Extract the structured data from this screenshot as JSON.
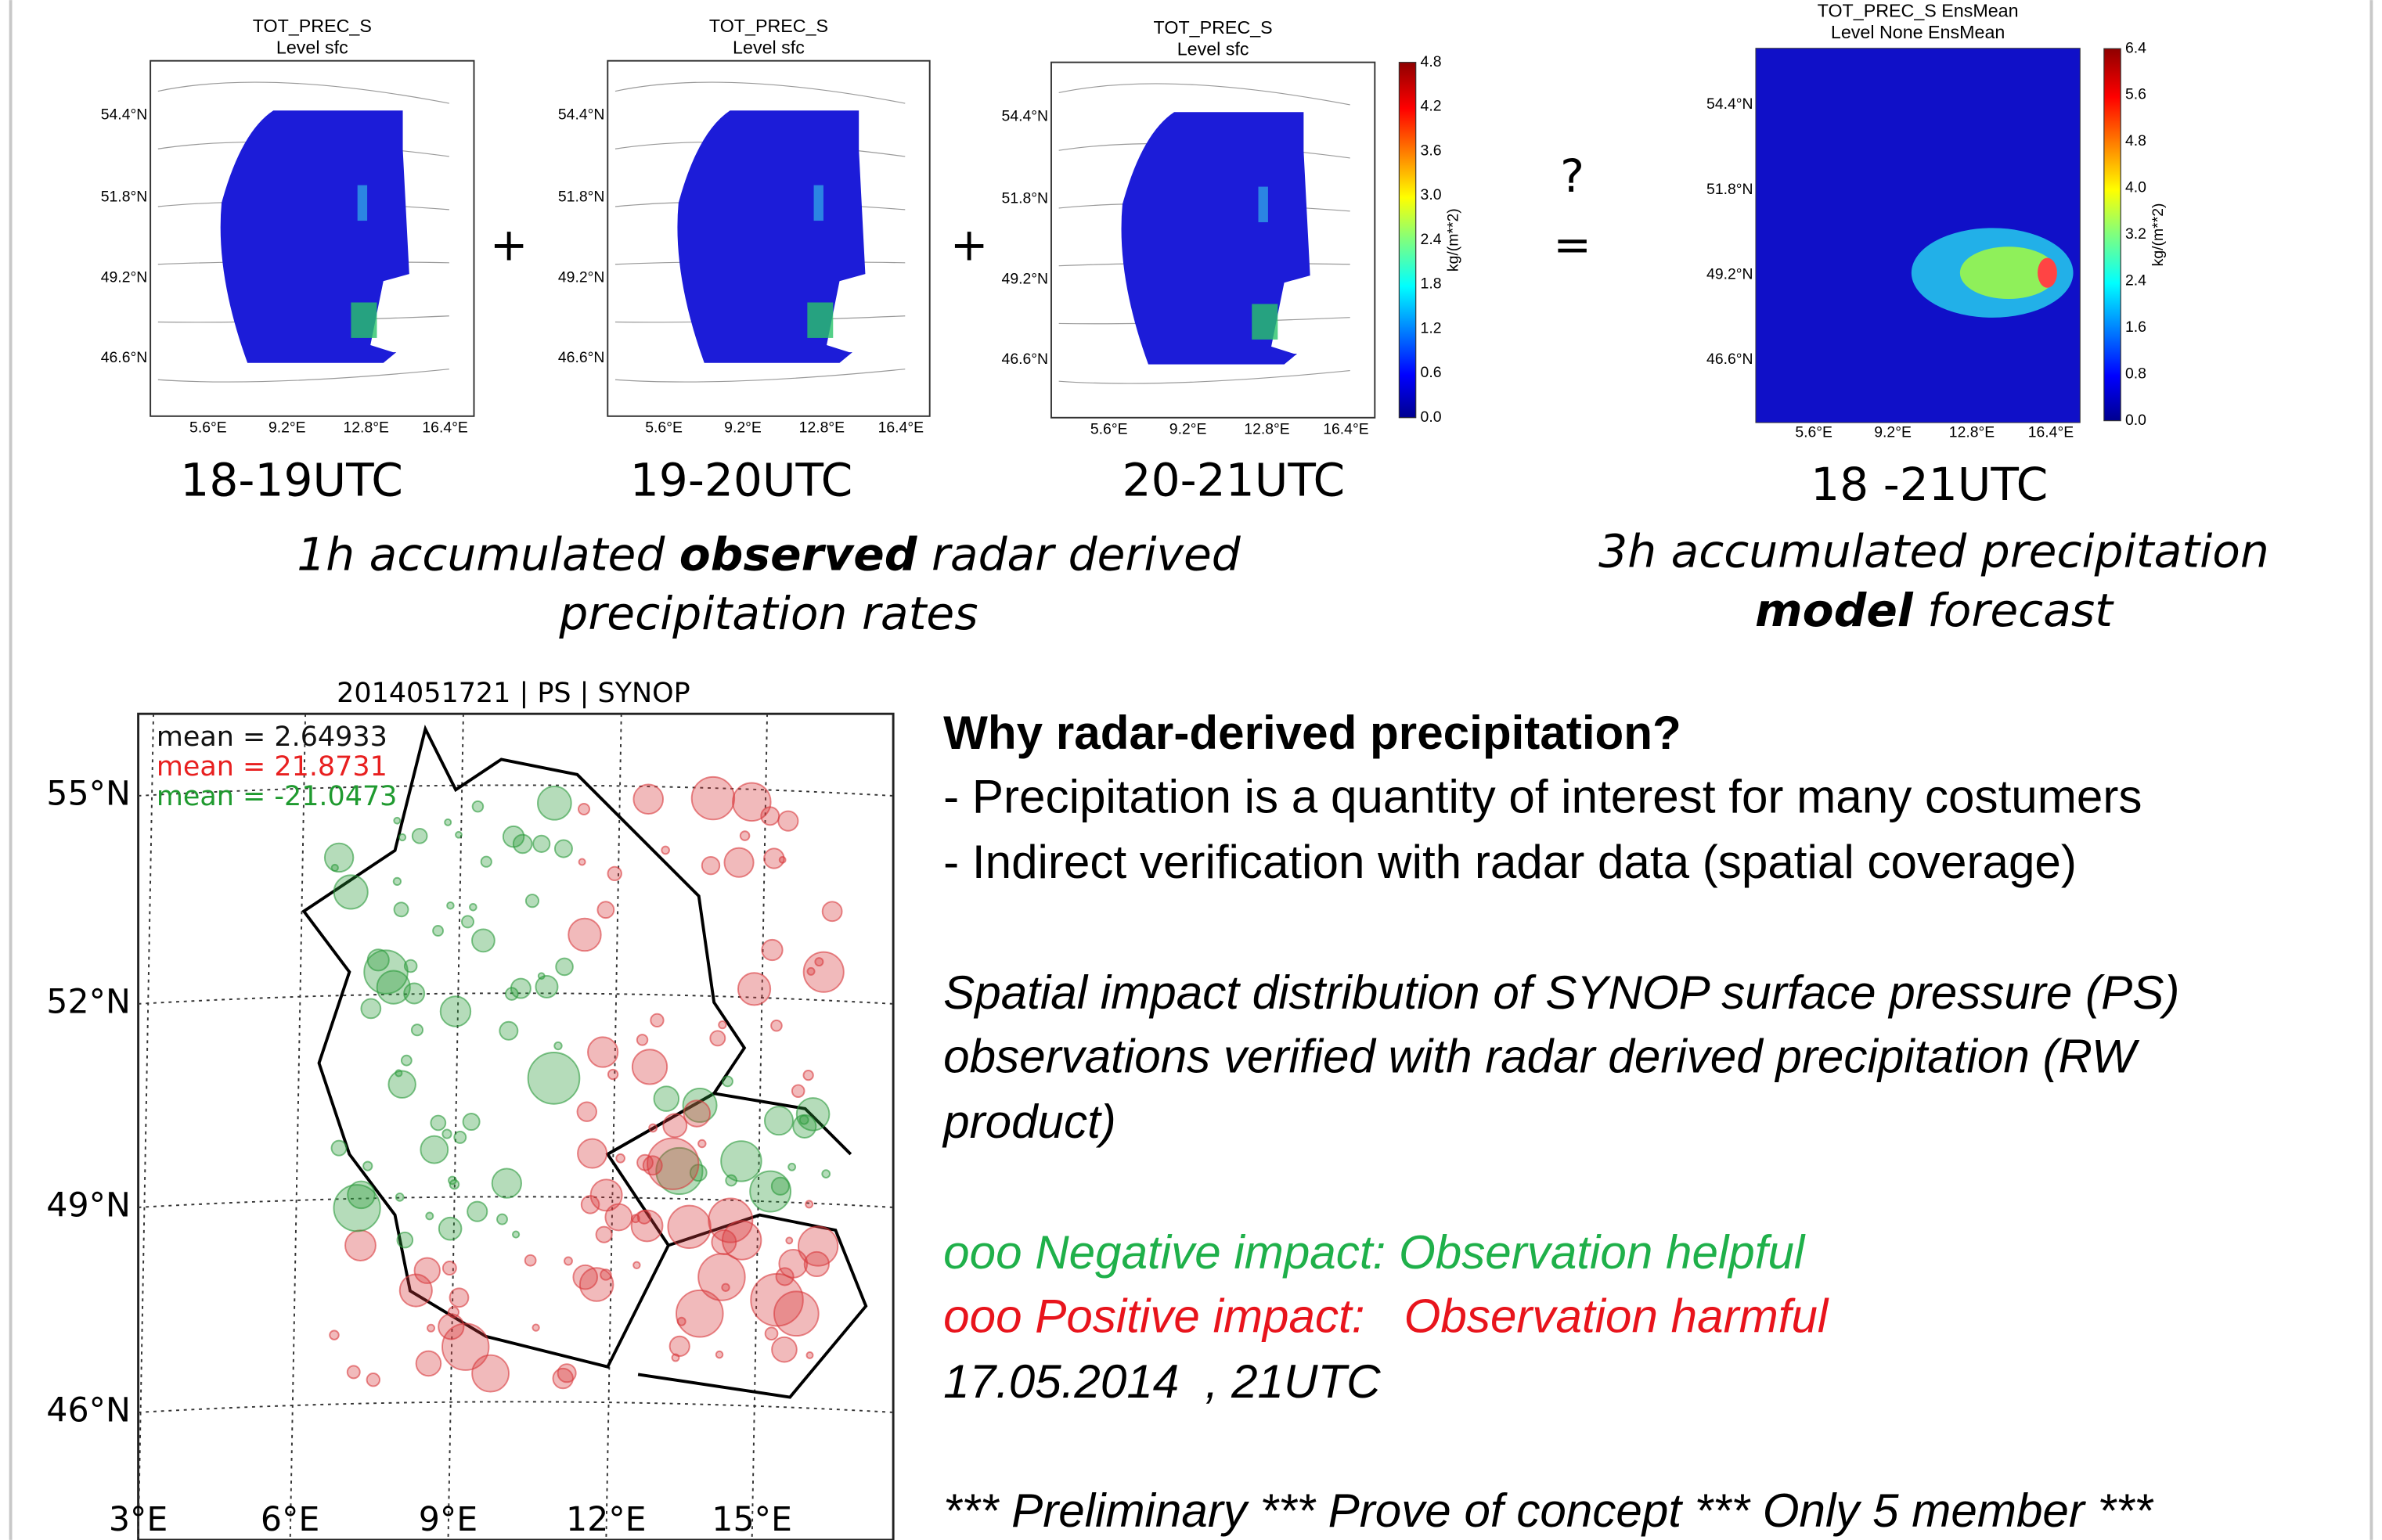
{
  "top_panels": [
    {
      "title": "TOT_PREC_S",
      "subtitle": "Level sfc",
      "lat_ticks": [
        "54.4°N",
        "51.8°N",
        "49.2°N",
        "46.6°N"
      ],
      "lon_ticks": [
        "5.6°E",
        "9.2°E",
        "12.8°E",
        "16.4°E"
      ],
      "time": "18-19UTC"
    },
    {
      "title": "TOT_PREC_S",
      "subtitle": "Level sfc",
      "lat_ticks": [
        "54.4°N",
        "51.8°N",
        "49.2°N",
        "46.6°N"
      ],
      "lon_ticks": [
        "5.6°E",
        "9.2°E",
        "12.8°E",
        "16.4°E"
      ],
      "time": "19-20UTC"
    },
    {
      "title": "TOT_PREC_S",
      "subtitle": "Level sfc",
      "lat_ticks": [
        "54.4°N",
        "51.8°N",
        "49.2°N",
        "46.6°N"
      ],
      "lon_ticks": [
        "5.6°E",
        "9.2°E",
        "12.8°E",
        "16.4°E"
      ],
      "time": "20-21UTC"
    }
  ],
  "obs_colorbar": {
    "unit": "kg/(m**2)",
    "ticks": [
      "4.8",
      "4.2",
      "3.6",
      "3.0",
      "2.4",
      "1.8",
      "1.2",
      "0.6",
      "0.0"
    ]
  },
  "model_panel": {
    "title": "TOT_PREC_S EnsMean",
    "subtitle": "Level None EnsMean",
    "lat_ticks": [
      "54.4°N",
      "51.8°N",
      "49.2°N",
      "46.6°N"
    ],
    "lon_ticks": [
      "5.6°E",
      "9.2°E",
      "12.8°E",
      "16.4°E"
    ],
    "time": "18 -21UTC"
  },
  "model_colorbar": {
    "unit": "kg/(m**2)",
    "ticks": [
      "6.4",
      "5.6",
      "4.8",
      "4.0",
      "3.2",
      "2.4",
      "1.6",
      "0.8",
      "0.0"
    ]
  },
  "operators": [
    "+",
    "+",
    "?",
    "="
  ],
  "obs_caption": {
    "line1": [
      "1h accumulated ",
      "observed",
      " radar derived"
    ],
    "line2": "precipitation rates"
  },
  "model_caption": {
    "line1": "3h accumulated precipitation",
    "line2": [
      "model",
      " forecast"
    ]
  },
  "synop_map": {
    "title": "2014051721 | PS | SYNOP",
    "means": [
      "mean = 2.64933",
      "mean = 21.8731",
      "mean = -21.0473"
    ],
    "lat_ticks": [
      "55°N",
      "52°N",
      "49°N",
      "46°N"
    ],
    "lon_ticks": [
      "3°E",
      "6°E",
      "9°E",
      "12°E",
      "15°E"
    ]
  },
  "text": {
    "heading": "Why radar-derived precipitation?",
    "bullets": [
      "- Precipitation is a quantity of interest for many costumers",
      "- Indirect verification with radar data (spatial coverage)"
    ],
    "paragraph": [
      "Spatial impact distribution of SYNOP surface pressure (PS)",
      "observations verified with radar derived precipitation (RW",
      "product)"
    ],
    "negative": "ooo Negative impact: Observation helpful",
    "positive": "ooo Positive impact:   Observation harmful",
    "date": "17.05.2014  , 21UTC",
    "footer": "*** Preliminary *** Prove of concept *** Only 5 member ***"
  }
}
